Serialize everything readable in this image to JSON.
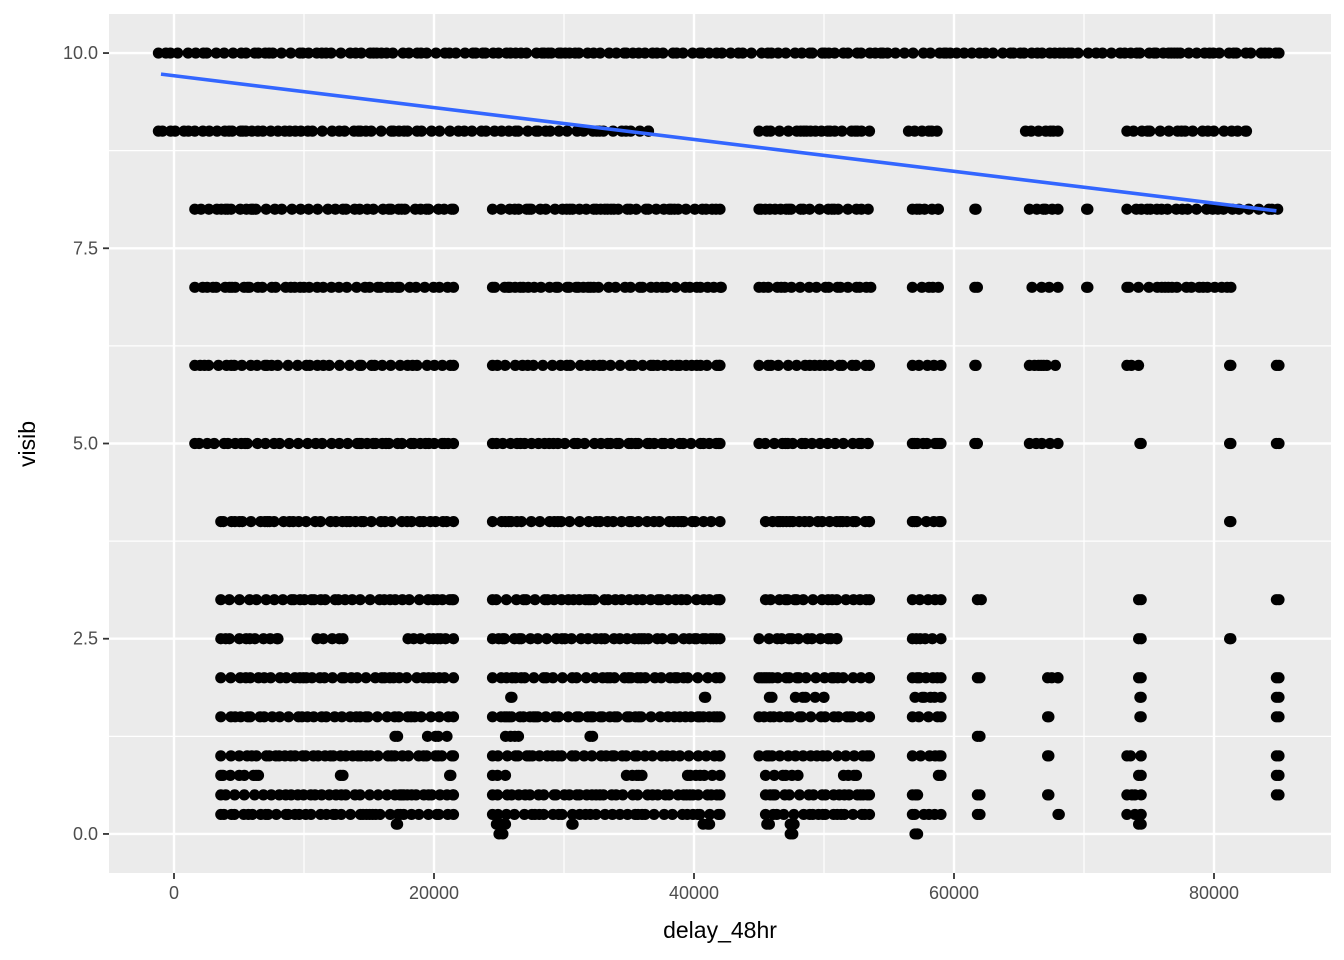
{
  "chart_data": {
    "type": "scatter",
    "title": "",
    "xlabel": "delay_48hr",
    "ylabel": "visib",
    "xlim": [
      -5000,
      89000
    ],
    "ylim": [
      -0.5,
      10.5
    ],
    "x_ticks": [
      0,
      20000,
      40000,
      60000,
      80000
    ],
    "x_tick_labels": [
      "0",
      "20000",
      "40000",
      "60000",
      "80000"
    ],
    "y_ticks": [
      0.0,
      2.5,
      5.0,
      7.5,
      10.0
    ],
    "y_tick_labels": [
      "0.0",
      "2.5",
      "5.0",
      "7.5",
      "10.0"
    ],
    "grid": true,
    "legend": "none",
    "colors": {
      "panel": "#ebebeb",
      "grid": "#ffffff",
      "points": "#000000",
      "trend": "#3366ff"
    },
    "trend_line": {
      "x": [
        -1000,
        84800
      ],
      "y": [
        9.73,
        7.98
      ]
    },
    "levels": [
      {
        "y": 10,
        "runs": [
          [
            -1200,
            85000
          ]
        ]
      },
      {
        "y": 9,
        "runs": [
          [
            -1200,
            36500
          ],
          [
            45000,
            53500
          ],
          [
            56500,
            58700
          ],
          [
            65500,
            68000
          ],
          [
            73300,
            82500
          ]
        ]
      },
      {
        "y": 8,
        "runs": [
          [
            1600,
            21500
          ],
          [
            24500,
            42000
          ],
          [
            45000,
            53400
          ],
          [
            56800,
            58800
          ],
          [
            61600,
            61700
          ],
          [
            65800,
            68000
          ],
          [
            70200,
            70300
          ],
          [
            73300,
            84900
          ]
        ]
      },
      {
        "y": 7,
        "runs": [
          [
            1600,
            21500
          ],
          [
            24500,
            42100
          ],
          [
            45000,
            53600
          ],
          [
            56800,
            58800
          ],
          [
            61600,
            61800
          ],
          [
            66000,
            68000
          ],
          [
            70200,
            70300
          ],
          [
            73300,
            81300
          ]
        ]
      },
      {
        "y": 6,
        "runs": [
          [
            1600,
            21500
          ],
          [
            24500,
            42000
          ],
          [
            45000,
            53500
          ],
          [
            56800,
            59000
          ],
          [
            61600,
            61700
          ],
          [
            65800,
            67800
          ],
          [
            73300,
            74200
          ],
          [
            81200,
            81300
          ],
          [
            84800,
            85000
          ]
        ]
      },
      {
        "y": 5,
        "runs": [
          [
            1600,
            21500
          ],
          [
            24500,
            42000
          ],
          [
            45000,
            53400
          ],
          [
            56800,
            59000
          ],
          [
            61600,
            61800
          ],
          [
            65800,
            68000
          ],
          [
            74300,
            74400
          ],
          [
            81200,
            81300
          ],
          [
            84800,
            85000
          ]
        ]
      },
      {
        "y": 4,
        "runs": [
          [
            3600,
            21500
          ],
          [
            24500,
            42000
          ],
          [
            45500,
            53500
          ],
          [
            56800,
            59000
          ],
          [
            81200,
            81300
          ]
        ]
      },
      {
        "y": 3,
        "runs": [
          [
            3600,
            21500
          ],
          [
            24500,
            42000
          ],
          [
            45500,
            53500
          ],
          [
            56800,
            59000
          ],
          [
            61800,
            62100
          ],
          [
            74200,
            74400
          ],
          [
            84800,
            85000
          ]
        ]
      },
      {
        "y": 2.5,
        "runs": [
          [
            3600,
            8000
          ],
          [
            11000,
            13000
          ],
          [
            18000,
            21500
          ],
          [
            24500,
            42000
          ],
          [
            45000,
            51000
          ],
          [
            56800,
            59000
          ],
          [
            74200,
            74400
          ],
          [
            81200,
            81300
          ]
        ]
      },
      {
        "y": 2,
        "runs": [
          [
            3600,
            21500
          ],
          [
            24500,
            42000
          ],
          [
            45000,
            53500
          ],
          [
            56800,
            59000
          ],
          [
            61800,
            62000
          ],
          [
            67200,
            68000
          ],
          [
            74200,
            74400
          ],
          [
            84800,
            85000
          ]
        ]
      },
      {
        "y": 1.75,
        "runs": [
          [
            25900,
            26000
          ],
          [
            40800,
            40900
          ],
          [
            45800,
            46000
          ],
          [
            47800,
            50000
          ],
          [
            57000,
            59000
          ],
          [
            74300,
            74400
          ],
          [
            84800,
            85000
          ]
        ]
      },
      {
        "y": 1.5,
        "runs": [
          [
            3600,
            21500
          ],
          [
            24500,
            42000
          ],
          [
            45000,
            53500
          ],
          [
            56800,
            59000
          ],
          [
            67200,
            67300
          ],
          [
            74300,
            74400
          ],
          [
            84800,
            85000
          ]
        ]
      },
      {
        "y": 1.25,
        "runs": [
          [
            17000,
            17200
          ],
          [
            19500,
            21000
          ],
          [
            25500,
            26500
          ],
          [
            32000,
            32200
          ],
          [
            61800,
            62000
          ]
        ]
      },
      {
        "y": 1,
        "runs": [
          [
            3600,
            21500
          ],
          [
            24500,
            42000
          ],
          [
            45000,
            53500
          ],
          [
            56800,
            59000
          ],
          [
            67200,
            67300
          ],
          [
            73300,
            74400
          ],
          [
            84800,
            85000
          ]
        ]
      },
      {
        "y": 0.75,
        "runs": [
          [
            3600,
            6500
          ],
          [
            12800,
            13000
          ],
          [
            21200,
            21300
          ],
          [
            24500,
            25500
          ],
          [
            34800,
            36000
          ],
          [
            39500,
            42000
          ],
          [
            45500,
            48000
          ],
          [
            51500,
            52500
          ],
          [
            58800,
            59000
          ],
          [
            74200,
            74400
          ],
          [
            84800,
            85000
          ]
        ]
      },
      {
        "y": 0.5,
        "runs": [
          [
            3600,
            21500
          ],
          [
            24500,
            42000
          ],
          [
            45500,
            53500
          ],
          [
            56800,
            57200
          ],
          [
            61800,
            62000
          ],
          [
            67200,
            67300
          ],
          [
            73300,
            74400
          ],
          [
            84800,
            85000
          ]
        ]
      },
      {
        "y": 0.25,
        "runs": [
          [
            3600,
            21500
          ],
          [
            24500,
            42000
          ],
          [
            45500,
            53500
          ],
          [
            56800,
            59000
          ],
          [
            61800,
            62000
          ],
          [
            68000,
            68100
          ],
          [
            73300,
            74400
          ]
        ]
      },
      {
        "y": 0.125,
        "runs": [
          [
            17100,
            17200
          ],
          [
            24800,
            25500
          ],
          [
            30600,
            30700
          ],
          [
            40700,
            41200
          ],
          [
            45600,
            45800
          ],
          [
            47400,
            47700
          ],
          [
            74200,
            74400
          ]
        ]
      },
      {
        "y": 0,
        "runs": [
          [
            25000,
            25300
          ],
          [
            47400,
            47600
          ],
          [
            57000,
            57200
          ]
        ]
      }
    ]
  }
}
